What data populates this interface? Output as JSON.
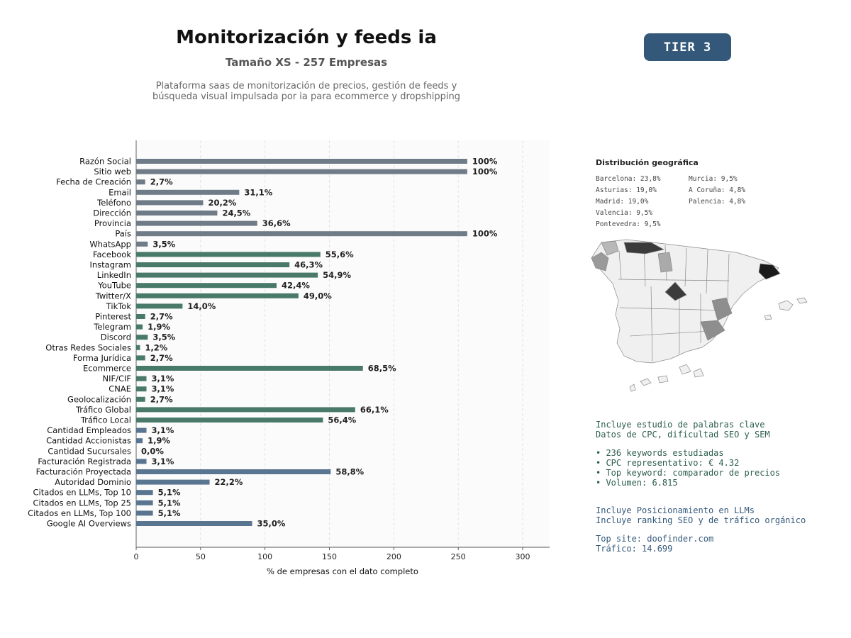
{
  "header": {
    "title": "Monitorización y feeds ia",
    "subtitle": "Tamaño XS - 257 Empresas",
    "description_line1": "Plataforma saas de monitorización de precios, gestión de feeds y",
    "description_line2": "búsqueda visual impulsada por ia para ecommerce y dropshipping",
    "tier": "TIER 3"
  },
  "chart_data": {
    "type": "bar",
    "orientation": "horizontal",
    "xlabel": "% de empresas con el dato completo",
    "ylabel": "",
    "xlim": [
      0,
      320
    ],
    "xticks": [
      0,
      50,
      100,
      150,
      200,
      250,
      300
    ],
    "grid": "vertical dashed",
    "categories": [
      "Razón Social",
      "Sitio web",
      "Fecha de Creación",
      "Email",
      "Teléfono",
      "Dirección",
      "Provincia",
      "País",
      "WhatsApp",
      "Facebook",
      "Instagram",
      "LinkedIn",
      "YouTube",
      "Twitter/X",
      "TikTok",
      "Pinterest",
      "Telegram",
      "Discord",
      "Otras Redes Sociales",
      "Forma Jurídica",
      "Ecommerce",
      "NIF/CIF",
      "CNAE",
      "Geolocalización",
      "Tráfico Global",
      "Tráfico Local",
      "Cantidad Empleados",
      "Cantidad Accionistas",
      "Cantidad Sucursales",
      "Facturación Registrada",
      "Facturación Proyectada",
      "Autoridad Dominio",
      "Citados en LLMs, Top 10",
      "Citados en LLMs, Top 25",
      "Citados en LLMs, Top 100",
      "Google AI Overviews"
    ],
    "values": [
      257,
      257,
      7,
      80,
      52,
      63,
      94,
      257,
      9,
      143,
      119,
      141,
      109,
      126,
      36,
      7,
      5,
      9,
      3,
      7,
      176,
      8,
      8,
      7,
      170,
      145,
      8,
      5,
      0,
      8,
      151,
      57,
      13,
      13,
      13,
      90
    ],
    "labels": [
      "100%",
      "100%",
      "2,7%",
      "31,1%",
      "20,2%",
      "24,5%",
      "36,6%",
      "100%",
      "3,5%",
      "55,6%",
      "46,3%",
      "54,9%",
      "42,4%",
      "49,0%",
      "14,0%",
      "2,7%",
      "1,9%",
      "3,5%",
      "1,2%",
      "2,7%",
      "68,5%",
      "3,1%",
      "3,1%",
      "2,7%",
      "66,1%",
      "56,4%",
      "3,1%",
      "1,9%",
      "0,0%",
      "3,1%",
      "58,8%",
      "22,2%",
      "5,1%",
      "5,1%",
      "5,1%",
      "35,0%"
    ],
    "groups": [
      "basic",
      "basic",
      "basic",
      "basic",
      "basic",
      "basic",
      "basic",
      "basic",
      "basic",
      "social",
      "social",
      "social",
      "social",
      "social",
      "social",
      "social",
      "social",
      "social",
      "social",
      "business",
      "business",
      "business",
      "business",
      "business",
      "business",
      "business",
      "financial",
      "financial",
      "financial",
      "financial",
      "financial",
      "financial",
      "financial",
      "financial",
      "financial",
      "financial"
    ],
    "colors": {
      "basic": "#6f7b87",
      "social": "#497a69",
      "business": "#497a69",
      "financial": "#597590"
    }
  },
  "geo": {
    "title": "Distribución geográfica",
    "col1": [
      "Barcelona: 23,8%",
      "Asturias: 19,0%",
      "Madrid: 19,0%",
      "Valencia: 9,5%",
      "Pontevedra: 9,5%"
    ],
    "col2": [
      "Murcia: 9,5%",
      "A Coruña: 4,8%",
      "Palencia: 4,8%"
    ]
  },
  "keywords": {
    "line1": "Incluye estudio de palabras clave",
    "line2": "Datos de CPC, dificultad SEO y SEM",
    "bullet1": "• 236 keywords estudiadas",
    "bullet2": "• CPC representativo: € 4.32",
    "bullet3": "• Top keyword: comparador de precios",
    "bullet4": "• Volumen: 6.815"
  },
  "seo": {
    "line1": "Incluye Posicionamiento en LLMs",
    "line2": "Incluye ranking SEO y de tráfico orgánico",
    "top_site": "Top site: doofinder.com",
    "traffic": "Tráfico: 14.699"
  }
}
